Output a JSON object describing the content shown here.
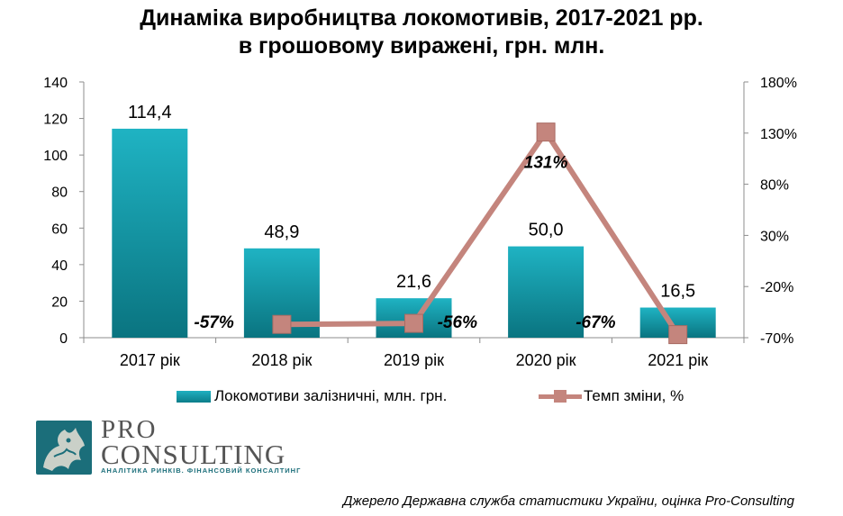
{
  "chart_data": {
    "type": "bar+line",
    "title": "Динаміка виробництва локомотивів, 2017-2021 рр.",
    "subtitle": "в грошовому виражені, грн. млн.",
    "categories": [
      "2017 рік",
      "2018 рік",
      "2019 рік",
      "2020 рік",
      "2021 рік"
    ],
    "series": [
      {
        "name": "Локомотиви залізничні, млн. грн.",
        "type": "bar",
        "axis": "left",
        "values": [
          114.4,
          48.9,
          21.6,
          50.0,
          16.5
        ],
        "labels": [
          "114,4",
          "48,9",
          "21,6",
          "50,0",
          "16,5"
        ],
        "color": "#0e8f9c"
      },
      {
        "name": "Темп зміни, %",
        "type": "line",
        "axis": "right",
        "points": [
          {
            "category": "2018 рік",
            "value": -57,
            "label": "-57%"
          },
          {
            "category": "2019 рік",
            "value": -56,
            "label": "-56%"
          },
          {
            "category": "2020 рік",
            "value": 131,
            "label": "131%"
          },
          {
            "category": "2021 рік",
            "value": -67,
            "label": "-67%"
          }
        ],
        "color": "#c4857d"
      }
    ],
    "y_left": {
      "min": 0,
      "max": 140,
      "ticks": [
        "0",
        "20",
        "40",
        "60",
        "80",
        "100",
        "120",
        "140"
      ]
    },
    "y_right": {
      "min": -70,
      "max": 180,
      "ticks": [
        "-70%",
        "-20%",
        "30%",
        "80%",
        "130%",
        "180%"
      ]
    },
    "grid": false,
    "legend_position": "bottom"
  },
  "logo": {
    "pro": "PRO",
    "consulting": "CONSULTING",
    "tagline": "АНАЛІТИКА РИНКІВ. ФІНАНСОВИЙ КОНСАЛТИНГ"
  },
  "source": "Джерело Державна служба статистики України, оцінка Pro-Consulting"
}
